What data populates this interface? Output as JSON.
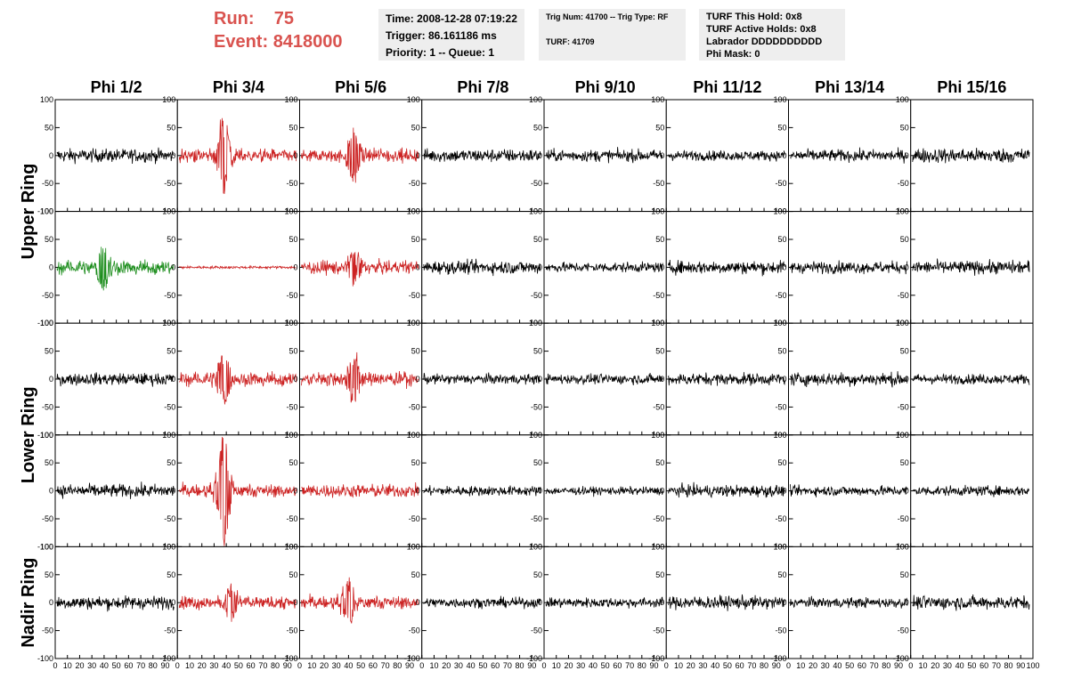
{
  "header": {
    "run_label": "Run:",
    "run_value": "75",
    "event_label": "Event:",
    "event_value": "8418000",
    "run_color": "#d9534f"
  },
  "info_panel_1": {
    "time": "Time: 2008-12-28 07:19:22",
    "trigger": "Trigger: 86.161186 ms",
    "priority": "Priority: 1 -- Queue: 1"
  },
  "info_panel_2": {
    "trig": "Trig Num: 41700 -- Trig Type: RF",
    "turf": "TURF: 41709"
  },
  "info_panel_3": {
    "hold": "TURF This Hold: 0x8",
    "active": "TURF Active Holds: 0x8",
    "labrador": "Labrador DDDDDDDDDD",
    "phimask": "Phi Mask: 0"
  },
  "chart_data": {
    "type": "line",
    "columns": [
      "Phi 1/2",
      "Phi 3/4",
      "Phi 5/6",
      "Phi 7/8",
      "Phi 9/10",
      "Phi 11/12",
      "Phi 13/14",
      "Phi 15/16"
    ],
    "row_labels": [
      "Upper Ring",
      "Lower Ring",
      "Nadir Ring"
    ],
    "rows": 5,
    "xlim": [
      0,
      100
    ],
    "ylim": [
      -100,
      100
    ],
    "x_ticks": [
      0,
      10,
      20,
      30,
      40,
      50,
      60,
      70,
      80,
      90,
      100
    ],
    "y_ticks": [
      100,
      50,
      0,
      -50,
      -100
    ],
    "colors": {
      "normal": "#000000",
      "triggered": "#cc2222",
      "selected": "#1a8c1a"
    },
    "panels": [
      [
        "normal",
        "triggered",
        "triggered",
        "normal",
        "normal",
        "normal",
        "normal",
        "normal"
      ],
      [
        "selected",
        "triggered",
        "triggered",
        "normal",
        "normal",
        "normal",
        "normal",
        "normal"
      ],
      [
        "normal",
        "triggered",
        "triggered",
        "normal",
        "normal",
        "normal",
        "normal",
        "normal"
      ],
      [
        "normal",
        "triggered",
        "triggered",
        "normal",
        "normal",
        "normal",
        "normal",
        "normal"
      ],
      [
        "normal",
        "triggered",
        "triggered",
        "normal",
        "normal",
        "normal",
        "normal",
        "normal"
      ]
    ],
    "pulse_peaks": [
      [
        0,
        70,
        50,
        0,
        0,
        0,
        0,
        0
      ],
      [
        45,
        0,
        30,
        0,
        0,
        0,
        0,
        0
      ],
      [
        0,
        50,
        45,
        0,
        0,
        0,
        0,
        0
      ],
      [
        0,
        95,
        0,
        0,
        0,
        0,
        0,
        0
      ],
      [
        0,
        30,
        40,
        0,
        0,
        0,
        0,
        0
      ]
    ],
    "pulse_centers": [
      [
        0,
        38,
        45,
        0,
        0,
        0,
        0,
        0
      ],
      [
        40,
        0,
        45,
        0,
        0,
        0,
        0,
        0
      ],
      [
        0,
        38,
        45,
        0,
        0,
        0,
        0,
        0
      ],
      [
        0,
        38,
        0,
        0,
        0,
        0,
        0,
        0
      ],
      [
        0,
        45,
        40,
        0,
        0,
        0,
        0,
        0
      ]
    ],
    "baseline_amplitude": [
      [
        20,
        20,
        20,
        20,
        18,
        15,
        18,
        22
      ],
      [
        20,
        4,
        20,
        20,
        15,
        20,
        18,
        20
      ],
      [
        18,
        20,
        20,
        15,
        15,
        18,
        20,
        15
      ],
      [
        20,
        20,
        20,
        15,
        12,
        18,
        15,
        15
      ],
      [
        20,
        20,
        20,
        15,
        15,
        20,
        15,
        20
      ]
    ]
  }
}
